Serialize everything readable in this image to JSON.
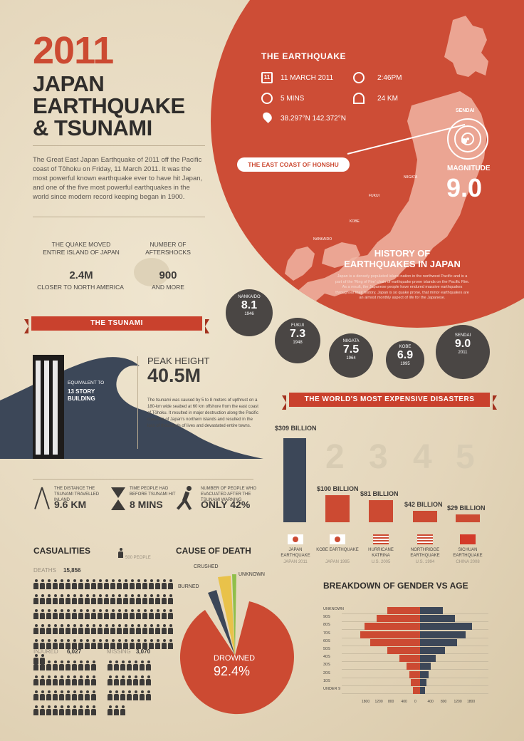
{
  "header": {
    "year": "2011",
    "line1": "JAPAN",
    "line2": "EARTHQUAKE",
    "line3": "& TSUNAMI",
    "intro": "The Great East Japan Earthquake of 2011 off the Pacific coast of Tōhoku on Friday, 11 March 2011. It was the most powerful known earthquake ever to have hit Japan, and one of the five most powerful earthquakes in the world since modern record keeping began in 1900."
  },
  "stats": {
    "moved_caption": "THE QUAKE MOVED ENTIRE ISLAND OF JAPAN",
    "moved_value": "2.4M",
    "moved_sub": "CLOSER TO NORTH AMERICA",
    "after_caption": "NUMBER OF AFTERSHOCKS",
    "after_value": "900",
    "after_sub": "AND MORE"
  },
  "earthquake": {
    "title": "THE EARTHQUAKE",
    "date": "11 MARCH 2011",
    "calendar_day": "11",
    "time": "2:46PM",
    "duration": "5 MINS",
    "depth": "24 KM",
    "coords": "38.297°N 142.372°N",
    "callout": "THE EAST COAST OF HONSHU",
    "epicenter_label": "SENDAI",
    "magnitude_label": "MAGNITUDE",
    "magnitude_value": "9.0",
    "map_cities": [
      "NIIGATA",
      "FUKUI",
      "KOBE",
      "NANKAIDO"
    ]
  },
  "history": {
    "title1": "HISTORY OF",
    "title2": "EARTHQUAKES IN JAPAN",
    "desc": "Japan is a densely populated island nation in the northwest Pacific and is a part of the 'Ring of Fire' chain of earthquake prone islands on the Pacific Rim. As a result, the Japanese people have endured massive earthquakes throughout their history. Japan is so quake prone, that minor earthquakes are an almost monthly aspect of life for the Japanese.",
    "items": [
      {
        "name": "NANKAIDO",
        "mag": "8.1",
        "year": "1946"
      },
      {
        "name": "FUKUI",
        "mag": "7.3",
        "year": "1948"
      },
      {
        "name": "NIIGATA",
        "mag": "7.5",
        "year": "1964"
      },
      {
        "name": "KOBE",
        "mag": "6.9",
        "year": "1995"
      },
      {
        "name": "SENDAI",
        "mag": "9.0",
        "year": "2011"
      }
    ]
  },
  "tsunami": {
    "ribbon": "THE TSUNAMI",
    "building_cap1": "EQUIVALENT TO",
    "building_cap2": "13 STORY BUILDING",
    "peak_label": "PEAK HEIGHT",
    "peak_value": "40.5M",
    "desc": "The tsunami was caused by 5 to 8 meters of upthrust on a 180-km wide seabed at 60 km offshore from the east coast of Tōhoku. It resulted in major destruction along the Pacific coastline of Japan's northern islands and resulted in the loss of thousands of lives and devastated entire towns.",
    "inland_cap": "THE DISTANCE THE TSUNAMI TRAVELLED INLAND",
    "inland_value": "9.6 KM",
    "time_cap": "TIME PEOPLE HAD BEFORE TSUNAMI HIT",
    "time_value": "8 MINS",
    "evac_cap": "NUMBER OF PEOPLE WHO EVACUATED AFTER THE TSUNAMI WARNING",
    "evac_value": "ONLY 42%"
  },
  "disasters": {
    "ribbon": "THE WORLD'S MOST EXPENSIVE DISASTERS",
    "ranks": [
      "1",
      "2",
      "3",
      "4",
      "5"
    ],
    "items": [
      {
        "value": "$309 BILLION",
        "amount": 309,
        "name": "JAPAN EARTHQUAKE",
        "date": "JAPAN 2011"
      },
      {
        "value": "$100 BILLION",
        "amount": 100,
        "name": "KOBE EARTHQUAKE",
        "date": "JAPAN 1995"
      },
      {
        "value": "$81 BILLION",
        "amount": 81,
        "name": "HURRICANE KATRINA",
        "date": "U.S. 2005"
      },
      {
        "value": "$42 BILLION",
        "amount": 42,
        "name": "NORTHRIDGE EARTHQUAKE",
        "date": "U.S. 1994"
      },
      {
        "value": "$29 BILLION",
        "amount": 29,
        "name": "SICHUAN EARTHQUAKE",
        "date": "CHINA 2008"
      }
    ]
  },
  "casualties": {
    "title": "CASUALITIES",
    "legend": "500 PEOPLE",
    "deaths_label": "DEATHS",
    "deaths_value": "15,856",
    "injured_label": "INJURED",
    "injured_value": "6,027",
    "missing_label": "MISSING",
    "missing_value": "3,070"
  },
  "cause": {
    "title": "CAUSE OF DEATH",
    "crushed": "CRUSHED",
    "burned": "BURNED",
    "unknown": "UNKNOWN",
    "drowned": "DROWNED",
    "drowned_pct": "92.4%"
  },
  "gender": {
    "title": "BREAKDOWN OF GENDER VS AGE",
    "age_groups": [
      "UNKNOWN",
      "90S",
      "80S",
      "70S",
      "60S",
      "50S",
      "40S",
      "30S",
      "20S",
      "10S",
      "UNDER 9"
    ],
    "male": [
      800,
      1050,
      1350,
      1450,
      1200,
      800,
      500,
      320,
      260,
      220,
      180
    ],
    "female": [
      550,
      850,
      1250,
      1100,
      900,
      600,
      380,
      260,
      200,
      160,
      120
    ],
    "ticks": [
      "1800",
      "1200",
      "800",
      "400",
      "0",
      "400",
      "800",
      "1200",
      "1800"
    ]
  },
  "colors": {
    "accent": "#cc4a32",
    "dark": "#3d3b39",
    "navy": "#3c4758",
    "paper": "#e8dcc4"
  }
}
